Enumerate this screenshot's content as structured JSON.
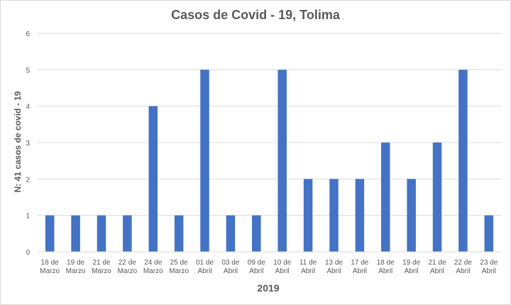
{
  "chart_data": {
    "type": "bar",
    "title": "Casos de Covid - 19, Tolima",
    "xlabel": "2019",
    "ylabel": "N: 41 casos de covid - 19",
    "ylim": [
      0,
      6
    ],
    "yticks": [
      "0",
      "1",
      "2",
      "3",
      "4",
      "5",
      "6"
    ],
    "grid": true,
    "legend": "none",
    "bar_color": "#4472c4",
    "categories": [
      [
        "18 de",
        "Marzo"
      ],
      [
        "19 de",
        "Marzo"
      ],
      [
        "21 de",
        "Marzo"
      ],
      [
        "22 de",
        "Marzo"
      ],
      [
        "24 de",
        "Marzo"
      ],
      [
        "25 de",
        "Marzo"
      ],
      [
        "01 de",
        "Abril"
      ],
      [
        "03 de",
        "Abril"
      ],
      [
        "09 de",
        "Abril"
      ],
      [
        "10 de",
        "Abril"
      ],
      [
        "11 de",
        "Abril"
      ],
      [
        "13 de",
        "Abril"
      ],
      [
        "17 de",
        "Abril"
      ],
      [
        "18 de",
        "Abril"
      ],
      [
        "19 de",
        "Abril"
      ],
      [
        "21 de",
        "Abril"
      ],
      [
        "22 de",
        "Abril"
      ],
      [
        "23 de",
        "Abril"
      ]
    ],
    "values": [
      1,
      1,
      1,
      1,
      4,
      1,
      5,
      1,
      1,
      5,
      2,
      2,
      2,
      3,
      2,
      3,
      5,
      1
    ]
  }
}
